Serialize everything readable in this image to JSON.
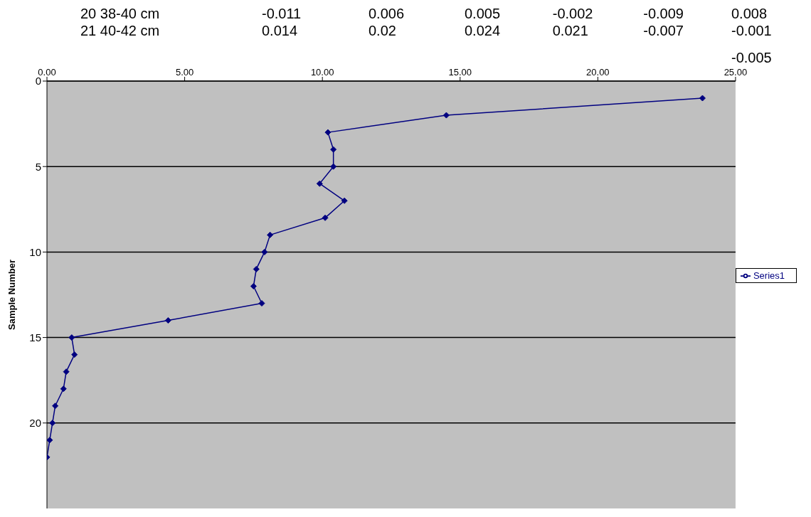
{
  "chart_data": {
    "type": "line",
    "ylabel": "Sample Number",
    "annotations": [
      "20 38-40 cm",
      "-0.011",
      "0.006",
      "0.005",
      "-0.002",
      "-0.009",
      "0.008",
      "21 40-42 cm",
      "0.014",
      "0.02",
      "0.024",
      "0.021",
      "-0.007",
      "-0.001",
      "-0.005"
    ],
    "series": [
      {
        "name": "Series1",
        "color": "#000080",
        "x": [
          23.8,
          14.5,
          10.2,
          10.4,
          10.4,
          9.9,
          10.8,
          10.1,
          8.1,
          7.9,
          7.6,
          7.5,
          7.8,
          4.4,
          0.9,
          1.0,
          0.7,
          0.6,
          0.3,
          0.2,
          0.1,
          0.0
        ],
        "values": [
          1,
          2,
          3,
          4,
          5,
          6,
          7,
          8,
          9,
          10,
          11,
          12,
          13,
          14,
          15,
          16,
          17,
          18,
          19,
          20,
          21,
          22
        ]
      }
    ],
    "xlim": [
      0,
      25
    ],
    "xticks": [
      {
        "value": 0,
        "label": "0.00"
      },
      {
        "value": 5,
        "label": "5.00"
      },
      {
        "value": 10,
        "label": "10.00"
      },
      {
        "value": 15,
        "label": "15.00"
      },
      {
        "value": 20,
        "label": "20.00"
      },
      {
        "value": 25,
        "label": "25.00"
      }
    ],
    "ylim": [
      25,
      0
    ],
    "yticks": [
      0,
      5,
      10,
      15,
      20
    ],
    "grid": "y",
    "legend": "right",
    "marker": "diamond",
    "line_style": "solid"
  }
}
